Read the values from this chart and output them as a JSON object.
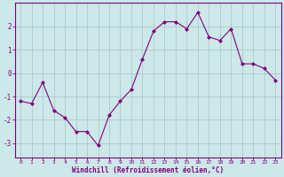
{
  "x": [
    0,
    1,
    2,
    3,
    4,
    5,
    6,
    7,
    8,
    9,
    10,
    11,
    12,
    13,
    14,
    15,
    16,
    17,
    18,
    19,
    20,
    21,
    22,
    23
  ],
  "y": [
    -1.2,
    -1.3,
    -0.4,
    -1.6,
    -1.9,
    -2.5,
    -2.5,
    -3.1,
    -1.8,
    -1.2,
    -0.7,
    0.6,
    1.8,
    2.2,
    2.2,
    1.9,
    2.6,
    1.55,
    1.4,
    1.9,
    0.4,
    0.4,
    0.2,
    -0.3
  ],
  "line_color": "#800080",
  "marker": "D",
  "marker_size": 2.0,
  "bg_color": "#cce8e8",
  "grid_color": "#aacccc",
  "xlabel": "Windchill (Refroidissement éolien,°C)",
  "xlabel_color": "#800080",
  "tick_color": "#800080",
  "spine_color": "#800080",
  "yticks": [
    -3,
    -2,
    -1,
    0,
    1,
    2
  ],
  "xticks": [
    0,
    1,
    2,
    3,
    4,
    5,
    6,
    7,
    8,
    9,
    10,
    11,
    12,
    13,
    14,
    15,
    16,
    17,
    18,
    19,
    20,
    21,
    22,
    23
  ],
  "ylim": [
    -3.6,
    3.0
  ],
  "xlim": [
    -0.5,
    23.5
  ],
  "linewidth": 0.8
}
